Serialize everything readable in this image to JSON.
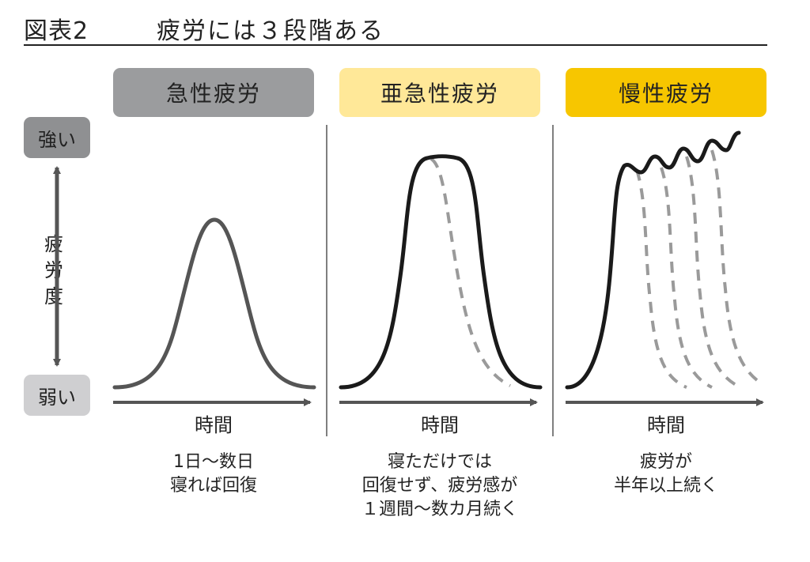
{
  "figure_label": "図表2",
  "title": "疲労には３段階ある",
  "y_axis": {
    "strong_label": "強い",
    "weak_label": "弱い",
    "name": "疲\n労\n度"
  },
  "stages": [
    {
      "name": "急性疲労",
      "x_label": "時間",
      "description": "1日～数日\n寝れば回復",
      "color": "#9b9c9e"
    },
    {
      "name": "亜急性疲労",
      "x_label": "時間",
      "description": "寝ただけでは\n回復せず、疲労感が\n１週間～数カ月続く",
      "color": "#ffe898"
    },
    {
      "name": "慢性疲労",
      "x_label": "時間",
      "description": "疲労が\n半年以上続く",
      "color": "#f7c600"
    }
  ],
  "colors": {
    "acute_curve": "#555555",
    "main_curve": "#1a1a1a",
    "recovery_dashed": "#9a9a9a",
    "axis": "#555555"
  }
}
